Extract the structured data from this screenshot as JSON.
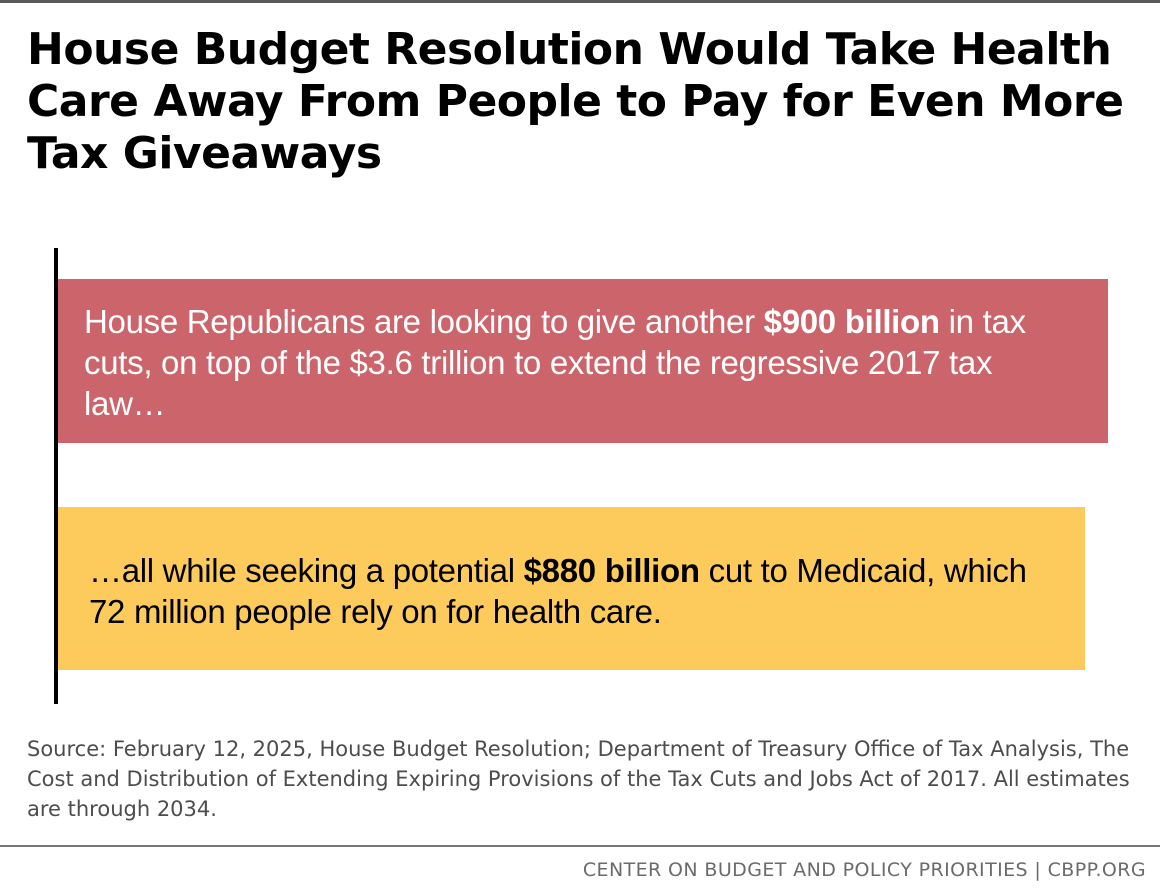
{
  "title": "House Budget Resolution Would Take Health Care Away From People to Pay for Even More Tax Giveaways",
  "chart_data": {
    "type": "bar",
    "orientation": "horizontal",
    "bars": [
      {
        "text_before": "House Republicans are looking to give another ",
        "text_bold": "$900 billion",
        "text_after": " in tax cuts, on top of the $3.6 trillion to extend the regressive 2017 tax law…",
        "value": 900,
        "color": "#cc656b",
        "text_color": "#ffffff"
      },
      {
        "text_before": "…all while seeking a potential ",
        "text_bold": "$880 billion",
        "text_after": " cut to Medicaid, which 72 million people rely on for health care.",
        "value": 880,
        "color": "#fccb5c",
        "text_color": "#000000"
      }
    ],
    "unit": "billion",
    "xlim": [
      0,
      900
    ]
  },
  "source": "Source: February 12, 2025, House Budget Resolution; Department of Treasury Office of Tax Analysis, The Cost and Distribution of Extending Expiring Provisions of the Tax Cuts and Jobs Act of 2017. All estimates are through 2034.",
  "footer": "CENTER ON BUDGET AND POLICY PRIORITIES | CBPP.ORG"
}
